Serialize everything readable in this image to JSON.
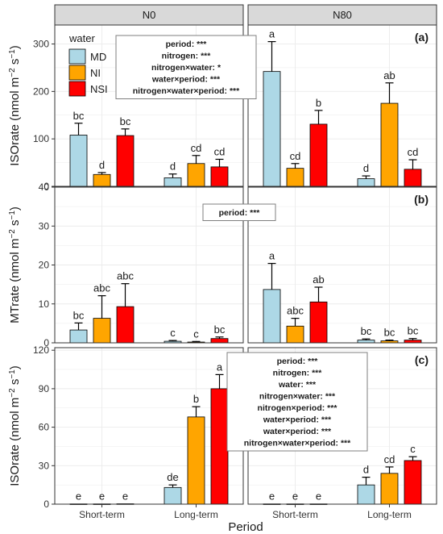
{
  "chart_data": {
    "type": "bar",
    "facets": [
      "N0",
      "N80"
    ],
    "x_label": "Period",
    "x_categories": [
      "Short-term",
      "Long-term"
    ],
    "legend": {
      "title": "water",
      "entries": [
        {
          "name": "MD",
          "color": "#add8e6"
        },
        {
          "name": "NI",
          "color": "#ffa500"
        },
        {
          "name": "NSI",
          "color": "#ff0000"
        }
      ]
    },
    "panels": [
      {
        "tag": "(a)",
        "ylabel_main": "ISOrate (nmol m",
        "ylabel_exp1": "−2",
        "ylabel_mid": " s",
        "ylabel_exp2": "−1",
        "ylabel_end": ")",
        "ylim": [
          0,
          340
        ],
        "yticks": [
          0,
          100,
          200,
          300
        ],
        "stats_facet": 0,
        "stats": [
          "period:   ***",
          "nitrogen:   ***",
          "nitrogen×water: *",
          "water×period: ***",
          "nitrogen×water×period: ***"
        ],
        "values": {
          "N0": {
            "Short-term": [
              {
                "v": 108,
                "e": 25,
                "l": "bc"
              },
              {
                "v": 25,
                "e": 4,
                "l": "d"
              },
              {
                "v": 107,
                "e": 14,
                "l": "bc"
              }
            ],
            "Long-term": [
              {
                "v": 18,
                "e": 8,
                "l": "d"
              },
              {
                "v": 48,
                "e": 17,
                "l": "cd"
              },
              {
                "v": 41,
                "e": 16,
                "l": "cd"
              }
            ]
          },
          "N80": {
            "Short-term": [
              {
                "v": 242,
                "e": 63,
                "l": "a"
              },
              {
                "v": 38,
                "e": 10,
                "l": "cd"
              },
              {
                "v": 131,
                "e": 29,
                "l": "b"
              }
            ],
            "Long-term": [
              {
                "v": 16,
                "e": 6,
                "l": "d"
              },
              {
                "v": 175,
                "e": 43,
                "l": "ab"
              },
              {
                "v": 36,
                "e": 20,
                "l": "cd"
              }
            ]
          }
        }
      },
      {
        "tag": "(b)",
        "ylabel_main": "MTrate (nmol m",
        "ylabel_exp1": "−2",
        "ylabel_mid": " s",
        "ylabel_exp2": "−1",
        "ylabel_end": ")",
        "ylim": [
          0,
          40
        ],
        "yticks": [
          0,
          10,
          20,
          30,
          40
        ],
        "stats_facet": 0,
        "stats": [
          "period:   ***"
        ],
        "values": {
          "N0": {
            "Short-term": [
              {
                "v": 3.3,
                "e": 1.8,
                "l": "bc"
              },
              {
                "v": 6.3,
                "e": 5.8,
                "l": "abc"
              },
              {
                "v": 9.3,
                "e": 5.9,
                "l": "abc"
              }
            ],
            "Long-term": [
              {
                "v": 0.4,
                "e": 0.2,
                "l": "c"
              },
              {
                "v": 0.2,
                "e": 0.15,
                "l": "c"
              },
              {
                "v": 1.1,
                "e": 0.4,
                "l": "bc"
              }
            ]
          },
          "N80": {
            "Short-term": [
              {
                "v": 13.7,
                "e": 6.7,
                "l": "a"
              },
              {
                "v": 4.3,
                "e": 2.0,
                "l": "abc"
              },
              {
                "v": 10.5,
                "e": 3.8,
                "l": "ab"
              }
            ],
            "Long-term": [
              {
                "v": 0.7,
                "e": 0.3,
                "l": "bc"
              },
              {
                "v": 0.5,
                "e": 0.2,
                "l": "bc"
              },
              {
                "v": 0.7,
                "e": 0.4,
                "l": "bc"
              }
            ]
          }
        }
      },
      {
        "tag": "(c)",
        "ylabel_main": "ISOrate (nmol m",
        "ylabel_exp1": "−2",
        "ylabel_mid": " s",
        "ylabel_exp2": "−1",
        "ylabel_end": ")",
        "ylim": [
          0,
          122
        ],
        "yticks": [
          0,
          30,
          60,
          90,
          120
        ],
        "stats_facet": 1,
        "stats": [
          "period:   ***",
          "nitrogen:   ***",
          "water:   ***",
          "nitrogen×water: ***",
          "nitrogen×period: ***",
          "water×period: ***",
          "water×period: ***",
          "nitrogen×water×period: ***"
        ],
        "values": {
          "N0": {
            "Short-term": [
              {
                "v": 0.2,
                "e": 0,
                "l": "e"
              },
              {
                "v": 0.2,
                "e": 0,
                "l": "e"
              },
              {
                "v": 0.3,
                "e": 0,
                "l": "e"
              }
            ],
            "Long-term": [
              {
                "v": 13,
                "e": 2,
                "l": "de"
              },
              {
                "v": 68,
                "e": 8,
                "l": "b"
              },
              {
                "v": 90,
                "e": 11,
                "l": "a"
              }
            ]
          },
          "N80": {
            "Short-term": [
              {
                "v": 0.2,
                "e": 0,
                "l": "e"
              },
              {
                "v": 0.2,
                "e": 0,
                "l": "e"
              },
              {
                "v": 0.2,
                "e": 0,
                "l": "e"
              }
            ],
            "Long-term": [
              {
                "v": 15,
                "e": 6,
                "l": "d"
              },
              {
                "v": 24,
                "e": 5,
                "l": "cd"
              },
              {
                "v": 34,
                "e": 3,
                "l": "c"
              }
            ]
          }
        }
      }
    ]
  }
}
